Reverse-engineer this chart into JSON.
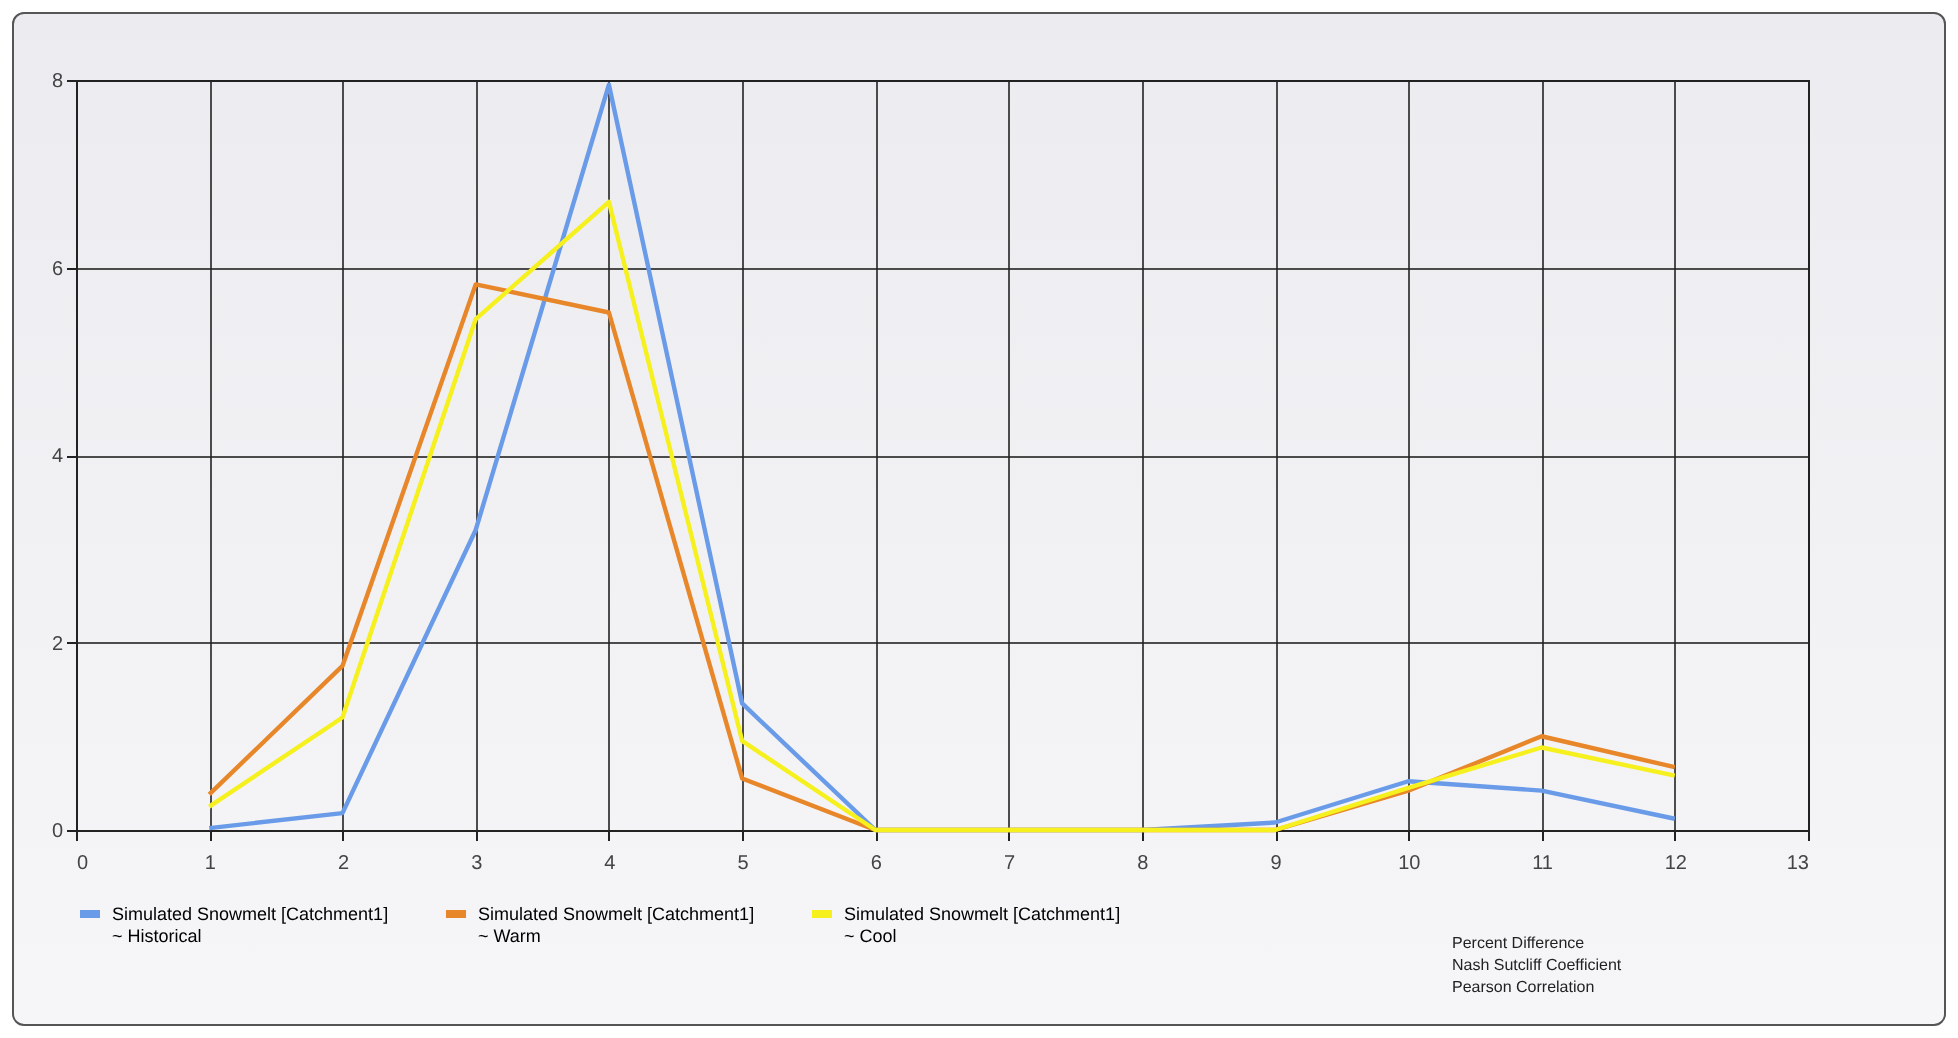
{
  "chart_data": {
    "type": "line",
    "x": [
      1,
      2,
      3,
      4,
      5,
      6,
      7,
      8,
      9,
      10,
      11,
      12
    ],
    "series": [
      {
        "name": "Simulated Snowmelt [Catchment1]\n~ Historical",
        "color": "#6a9be8",
        "values": [
          0.02,
          0.18,
          3.2,
          7.95,
          1.35,
          0,
          0,
          0,
          0.08,
          0.52,
          0.42,
          0.12
        ]
      },
      {
        "name": "Simulated Snowmelt [Catchment1]\n~ Warm",
        "color": "#e8862a",
        "values": [
          0.38,
          1.75,
          5.82,
          5.52,
          0.55,
          0,
          0,
          0,
          0,
          0.42,
          1.0,
          0.67
        ]
      },
      {
        "name": "Simulated Snowmelt [Catchment1]\n~ Cool",
        "color": "#f5f01e",
        "values": [
          0.25,
          1.2,
          5.45,
          6.7,
          0.95,
          0,
          0,
          0,
          0,
          0.45,
          0.88,
          0.58
        ]
      }
    ],
    "xlim": [
      0,
      13
    ],
    "xticks": [
      0,
      1,
      2,
      3,
      4,
      5,
      6,
      7,
      8,
      9,
      10,
      11,
      12,
      13
    ],
    "ylim": [
      0,
      8
    ],
    "yticks": [
      0,
      2,
      4,
      6,
      8
    ],
    "grid": true,
    "legend": "bottom",
    "marker": "none",
    "line_style": "solid",
    "annotations": [
      "Percent Difference",
      "Nash Sutcliff Coefficient",
      "Pearson Correlation"
    ]
  }
}
